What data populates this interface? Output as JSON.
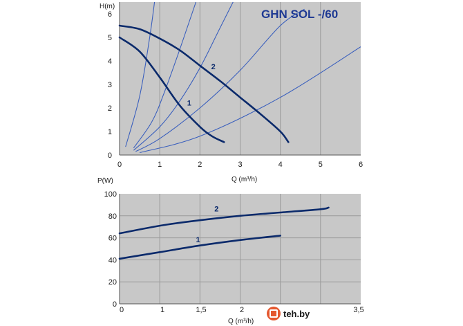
{
  "chart_data": [
    {
      "type": "line",
      "title": "GHN SOL -/60",
      "ylabel": "H(m)",
      "xlabel": "Q (m³/h)",
      "xlim": [
        0,
        6
      ],
      "ylim": [
        0,
        6.5
      ],
      "xticks": [
        "0",
        "1",
        "2",
        "3",
        "4",
        "5",
        "6"
      ],
      "yticks": [
        "0",
        "1",
        "2",
        "3",
        "4",
        "5",
        "6"
      ],
      "grid": true,
      "colors": {
        "plot_bg": "#c8c8c8",
        "grid": "#9a9a9a",
        "curve": "#0b2a6b",
        "system_curve": "#3a5fbd"
      },
      "series": [
        {
          "name": "1",
          "x": [
            0,
            0.5,
            1,
            1.5,
            2,
            2.3,
            2.6
          ],
          "y": [
            5.0,
            4.4,
            3.3,
            2.1,
            1.2,
            0.8,
            0.55
          ]
        },
        {
          "name": "2",
          "x": [
            0,
            0.5,
            1,
            1.5,
            2,
            2.5,
            3,
            3.5,
            4,
            4.2
          ],
          "y": [
            5.5,
            5.35,
            4.95,
            4.45,
            3.8,
            3.15,
            2.45,
            1.75,
            1.0,
            0.55
          ]
        }
      ],
      "system_curves": [
        {
          "x": [
            0.15,
            0.5,
            0.75,
            0.9
          ],
          "y": [
            0.35,
            2.5,
            5.0,
            6.9
          ]
        },
        {
          "x": [
            0.35,
            0.8,
            1.1,
            1.5,
            1.8,
            2.0,
            2.15
          ],
          "y": [
            0.3,
            1.4,
            2.6,
            4.5,
            6.0,
            7.0,
            7.8
          ]
        },
        {
          "x": [
            0.35,
            1.0,
            1.5,
            2.0,
            2.5,
            3.0
          ],
          "y": [
            0.2,
            1.2,
            2.3,
            3.7,
            5.4,
            7.1
          ]
        },
        {
          "x": [
            0.4,
            1.0,
            2.0,
            3.0,
            4.0,
            4.6
          ],
          "y": [
            0.15,
            0.7,
            2.0,
            3.6,
            5.5,
            6.2
          ]
        },
        {
          "x": [
            0.5,
            2.0,
            4.0,
            6.0
          ],
          "y": [
            0.1,
            0.8,
            2.45,
            4.6
          ]
        }
      ]
    },
    {
      "type": "line",
      "ylabel": "P(W)",
      "xlabel": "Q (m³/h)",
      "xlim": [
        0,
        3
      ],
      "ylim": [
        0,
        100
      ],
      "xticks": [
        "0",
        "1",
        "1,5",
        "2",
        "2,5",
        "3,5"
      ],
      "yticks": [
        "0",
        "20",
        "40",
        "60",
        "80",
        "100"
      ],
      "grid": true,
      "colors": {
        "plot_bg": "#c8c8c8",
        "grid": "#9a9a9a",
        "curve": "#0b2a6b"
      },
      "series": [
        {
          "name": "1",
          "x": [
            0,
            0.5,
            1,
            1.5,
            2
          ],
          "y": [
            41,
            47,
            53,
            58,
            62
          ]
        },
        {
          "name": "2",
          "x": [
            0,
            0.5,
            1,
            1.5,
            2,
            2.5,
            2.6
          ],
          "y": [
            64,
            71,
            76,
            80,
            83,
            86,
            87.5
          ]
        }
      ]
    }
  ],
  "watermark": {
    "text": "teh.by",
    "icon": "teh-logo-icon"
  }
}
